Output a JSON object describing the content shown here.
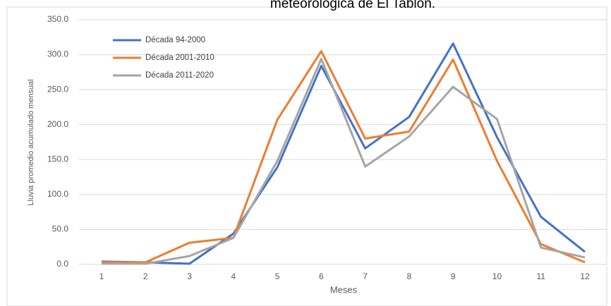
{
  "chart_data": {
    "type": "line",
    "title": "meteorológica de El Tablón.",
    "x_label": "Meses",
    "y_label": "Lluvia promedio acumulado mensual",
    "categories": [
      "1",
      "2",
      "3",
      "4",
      "5",
      "6",
      "7",
      "8",
      "9",
      "10",
      "11",
      "12"
    ],
    "series": [
      {
        "name": "Década 94-2000",
        "color": "#4472c4",
        "values": [
          4,
          3,
          1,
          44,
          139,
          284,
          166,
          211,
          316,
          182,
          68,
          18
        ]
      },
      {
        "name": "Década 2001-2010",
        "color": "#ed7d31",
        "values": [
          3,
          3,
          31,
          38,
          207,
          305,
          180,
          190,
          293,
          148,
          29,
          3
        ]
      },
      {
        "name": "Década 2011-2020",
        "color": "#a5a5a5",
        "values": [
          1,
          1,
          12,
          38,
          148,
          294,
          140,
          183,
          254,
          208,
          24,
          10
        ]
      }
    ],
    "ylim": [
      0,
      350
    ],
    "yticks": [
      {
        "value": 0,
        "label": "0.0"
      },
      {
        "value": 50,
        "label": "50.0"
      },
      {
        "value": 100,
        "label": "100.0"
      },
      {
        "value": 150,
        "label": "150.0"
      },
      {
        "value": 200,
        "label": "200.0"
      },
      {
        "value": 250,
        "label": "250.0"
      },
      {
        "value": 300,
        "label": "300.0"
      },
      {
        "value": 350,
        "label": "350.0"
      }
    ],
    "grid": true,
    "legend": "top-left"
  }
}
